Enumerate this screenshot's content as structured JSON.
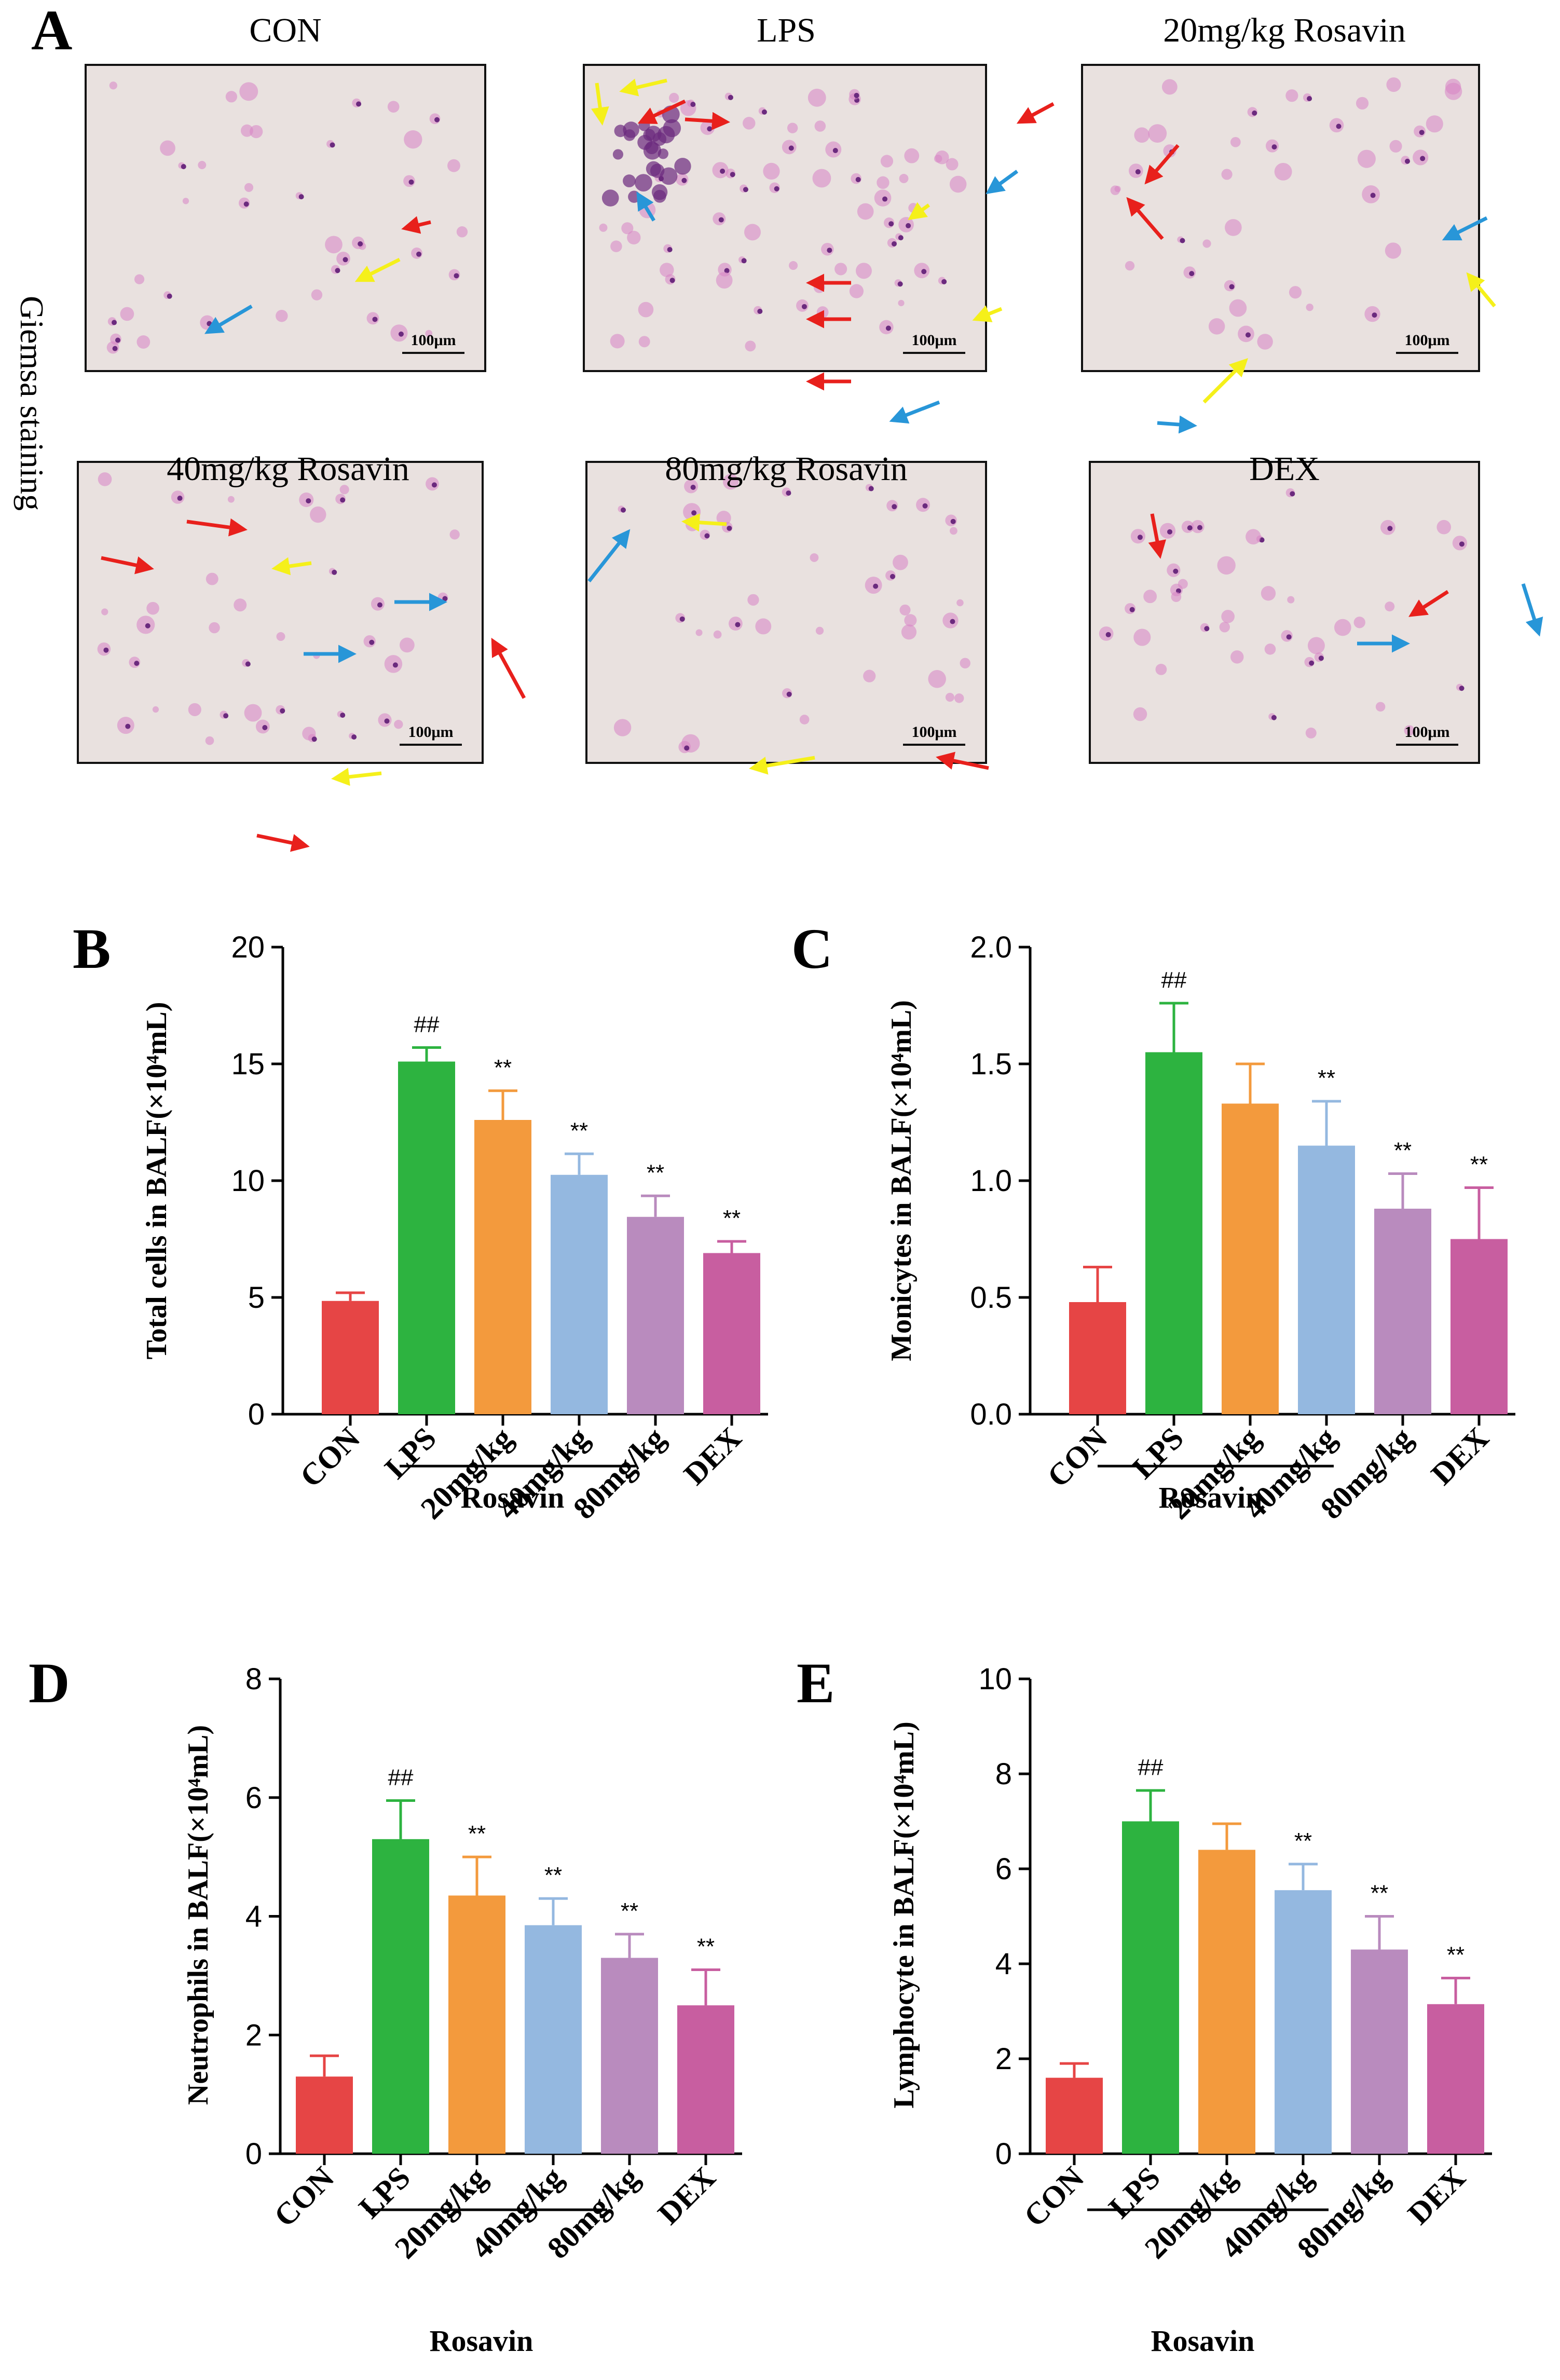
{
  "figure": {
    "panel_a_letter": "A",
    "side_label": "Giemsa staining",
    "scale_bar_text": "100μm",
    "images": [
      {
        "title": "CON"
      },
      {
        "title": "LPS"
      },
      {
        "title": "20mg/kg Rosavin"
      },
      {
        "title": "40mg/kg Rosavin"
      },
      {
        "title": "80mg/kg Rosavin"
      },
      {
        "title": "DEX"
      }
    ],
    "colors": {
      "arrow_red": "#e8201c",
      "arrow_yellow": "#f5f01a",
      "arrow_blue": "#2896d8",
      "slide_bg": "#e9e1df",
      "cell_pink": "#d784c4",
      "cell_purple": "#6b2a7e"
    }
  },
  "chart_data": [
    {
      "panel": "B",
      "type": "bar",
      "ylabel": "Total cells in BALF(×10⁴mL)",
      "ylim": [
        0,
        20
      ],
      "yticks": [
        0,
        5,
        10,
        15,
        20
      ],
      "categories": [
        "CON",
        "LPS",
        "20mg/kg",
        "40mg/kg",
        "80mg/kg",
        "DEX"
      ],
      "values": [
        4.85,
        15.1,
        12.6,
        10.25,
        8.45,
        6.9
      ],
      "errors": [
        0.35,
        0.6,
        1.25,
        0.9,
        0.9,
        0.5
      ],
      "significance": [
        "",
        "##",
        "**",
        "**",
        "**",
        "**"
      ],
      "group_label": "Rosavin"
    },
    {
      "panel": "C",
      "type": "bar",
      "ylabel": "Monicytes in BALF(×10⁴mL)",
      "ylim": [
        0,
        2.0
      ],
      "yticks": [
        "0.0",
        "0.5",
        "1.0",
        "1.5",
        "2.0"
      ],
      "categories": [
        "CON",
        "LPS",
        "20mg/kg",
        "40mg/kg",
        "80mg/kg",
        "DEX"
      ],
      "values": [
        0.48,
        1.55,
        1.33,
        1.15,
        0.88,
        0.75
      ],
      "errors": [
        0.15,
        0.21,
        0.17,
        0.19,
        0.15,
        0.22
      ],
      "significance": [
        "",
        "##",
        "",
        "**",
        "**",
        "**"
      ],
      "group_label": "Rosavin"
    },
    {
      "panel": "D",
      "type": "bar",
      "ylabel": "Neutrophils in BALF(×10⁴mL)",
      "ylim": [
        0,
        8
      ],
      "yticks": [
        0,
        2,
        4,
        6,
        8
      ],
      "categories": [
        "CON",
        "LPS",
        "20mg/kg",
        "40mg/kg",
        "80mg/kg",
        "DEX"
      ],
      "values": [
        1.3,
        5.3,
        4.35,
        3.85,
        3.3,
        2.5
      ],
      "errors": [
        0.35,
        0.65,
        0.65,
        0.45,
        0.4,
        0.6
      ],
      "significance": [
        "",
        "##",
        "**",
        "**",
        "**",
        "**"
      ],
      "group_label": "Rosavin"
    },
    {
      "panel": "E",
      "type": "bar",
      "ylabel": "Lymphocyte in BALF(×10⁴mL)",
      "ylim": [
        0,
        10
      ],
      "yticks": [
        0,
        2,
        4,
        6,
        8,
        10
      ],
      "categories": [
        "CON",
        "LPS",
        "20mg/kg",
        "40mg/kg",
        "80mg/kg",
        "DEX"
      ],
      "values": [
        1.6,
        7.0,
        6.4,
        5.55,
        4.3,
        3.15
      ],
      "errors": [
        0.3,
        0.65,
        0.55,
        0.55,
        0.7,
        0.55
      ],
      "significance": [
        "",
        "##",
        "",
        "**",
        "**",
        "**"
      ],
      "group_label": "Rosavin"
    }
  ],
  "bar_colors": [
    "#e64545",
    "#2db340",
    "#f39a3d",
    "#94b8e0",
    "#b98bbe",
    "#c85ea0"
  ]
}
